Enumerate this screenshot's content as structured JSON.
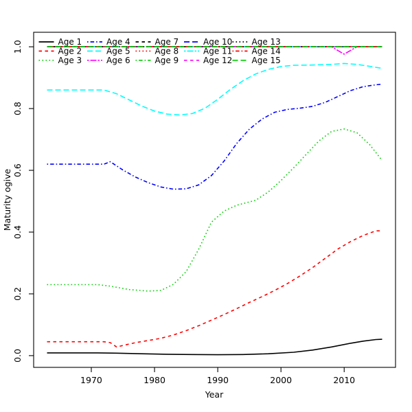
{
  "figure": {
    "background": "#ffffff",
    "plot_type": "r-base-line-plot"
  },
  "chart_data": {
    "type": "line",
    "title": "",
    "xlabel": "Year",
    "ylabel": "Maturity ogive",
    "xlim": [
      1960.88,
      2018.12
    ],
    "ylim": [
      -0.038,
      1.047
    ],
    "grid": false,
    "x_ticks": {
      "values": [
        1970,
        1980,
        1990,
        2000,
        2010
      ],
      "labels": [
        "1970",
        "1980",
        "1990",
        "2000",
        "2010"
      ]
    },
    "y_ticks": {
      "values": [
        0.0,
        0.2,
        0.4,
        0.6,
        0.8,
        1.0
      ],
      "labels": [
        "0.0",
        "0.2",
        "0.4",
        "0.6",
        "0.8",
        "1.0"
      ]
    },
    "legend": {
      "position": "top-left",
      "columns": 5,
      "rows": 3,
      "order": "column-major"
    },
    "palette": {
      "black": "#000000",
      "red": "#FF0000",
      "green": "#00CD00",
      "blue": "#0000FF",
      "cyan": "#00FFFF",
      "magenta": "#FF00FF"
    },
    "series": [
      {
        "name": "Age 1",
        "color": "#000000",
        "linetype": "solid",
        "points": [
          [
            1963,
            0.009
          ],
          [
            1971,
            0.009
          ],
          [
            1974,
            0.008
          ],
          [
            1978,
            0.006
          ],
          [
            1982,
            0.0045
          ],
          [
            1986,
            0.0035
          ],
          [
            1990,
            0.003
          ],
          [
            1994,
            0.0035
          ],
          [
            1998,
            0.006
          ],
          [
            2002,
            0.011
          ],
          [
            2005,
            0.018
          ],
          [
            2008,
            0.028
          ],
          [
            2011,
            0.04
          ],
          [
            2013,
            0.047
          ],
          [
            2015,
            0.052
          ],
          [
            2016,
            0.053
          ]
        ]
      },
      {
        "name": "Age 2",
        "color": "#FF0000",
        "linetype": "dashed",
        "points": [
          [
            1963,
            0.045
          ],
          [
            1972,
            0.045
          ],
          [
            1973,
            0.042
          ],
          [
            1974,
            0.028
          ],
          [
            1975,
            0.033
          ],
          [
            1977,
            0.042
          ],
          [
            1979,
            0.049
          ],
          [
            1981,
            0.056
          ],
          [
            1983,
            0.067
          ],
          [
            1985,
            0.081
          ],
          [
            1987,
            0.097
          ],
          [
            1989,
            0.115
          ],
          [
            1991,
            0.133
          ],
          [
            1993,
            0.152
          ],
          [
            1995,
            0.172
          ],
          [
            1997,
            0.191
          ],
          [
            1999,
            0.211
          ],
          [
            2001,
            0.233
          ],
          [
            2003,
            0.258
          ],
          [
            2005,
            0.285
          ],
          [
            2007,
            0.315
          ],
          [
            2009,
            0.345
          ],
          [
            2011,
            0.369
          ],
          [
            2013,
            0.389
          ],
          [
            2015,
            0.404
          ],
          [
            2016,
            0.404
          ]
        ]
      },
      {
        "name": "Age 3",
        "color": "#00CD00",
        "linetype": "dotted",
        "points": [
          [
            1963,
            0.23
          ],
          [
            1971,
            0.23
          ],
          [
            1973,
            0.225
          ],
          [
            1976,
            0.214
          ],
          [
            1979,
            0.209
          ],
          [
            1981,
            0.211
          ],
          [
            1983,
            0.231
          ],
          [
            1985,
            0.272
          ],
          [
            1987,
            0.345
          ],
          [
            1989,
            0.432
          ],
          [
            1991,
            0.468
          ],
          [
            1993,
            0.487
          ],
          [
            1996,
            0.503
          ],
          [
            1998,
            0.53
          ],
          [
            2000,
            0.567
          ],
          [
            2002,
            0.608
          ],
          [
            2004,
            0.652
          ],
          [
            2006,
            0.695
          ],
          [
            2008,
            0.726
          ],
          [
            2010,
            0.734
          ],
          [
            2012,
            0.722
          ],
          [
            2014,
            0.684
          ],
          [
            2016,
            0.632
          ]
        ]
      },
      {
        "name": "Age 4",
        "color": "#0000FF",
        "linetype": "dotdash",
        "points": [
          [
            1963,
            0.62
          ],
          [
            1972,
            0.62
          ],
          [
            1973,
            0.628
          ],
          [
            1975,
            0.601
          ],
          [
            1977,
            0.578
          ],
          [
            1979,
            0.56
          ],
          [
            1981,
            0.546
          ],
          [
            1983,
            0.539
          ],
          [
            1985,
            0.54
          ],
          [
            1987,
            0.553
          ],
          [
            1989,
            0.583
          ],
          [
            1991,
            0.63
          ],
          [
            1993,
            0.687
          ],
          [
            1995,
            0.733
          ],
          [
            1997,
            0.766
          ],
          [
            1999,
            0.788
          ],
          [
            2001,
            0.797
          ],
          [
            2003,
            0.801
          ],
          [
            2005,
            0.807
          ],
          [
            2007,
            0.82
          ],
          [
            2009,
            0.839
          ],
          [
            2011,
            0.858
          ],
          [
            2013,
            0.871
          ],
          [
            2015,
            0.877
          ],
          [
            2016,
            0.879
          ]
        ]
      },
      {
        "name": "Age 5",
        "color": "#00FFFF",
        "linetype": "longdash",
        "points": [
          [
            1963,
            0.86
          ],
          [
            1972,
            0.86
          ],
          [
            1974,
            0.848
          ],
          [
            1976,
            0.828
          ],
          [
            1978,
            0.808
          ],
          [
            1980,
            0.792
          ],
          [
            1982,
            0.782
          ],
          [
            1984,
            0.779
          ],
          [
            1986,
            0.784
          ],
          [
            1988,
            0.801
          ],
          [
            1990,
            0.83
          ],
          [
            1992,
            0.862
          ],
          [
            1994,
            0.89
          ],
          [
            1996,
            0.912
          ],
          [
            1998,
            0.927
          ],
          [
            2000,
            0.936
          ],
          [
            2002,
            0.94
          ],
          [
            2005,
            0.941
          ],
          [
            2008,
            0.943
          ],
          [
            2010,
            0.946
          ],
          [
            2012,
            0.943
          ],
          [
            2014,
            0.937
          ],
          [
            2016,
            0.93
          ]
        ]
      },
      {
        "name": "Age 6",
        "color": "#FF00FF",
        "linetype": "twodash",
        "points": [
          [
            1963,
            1
          ],
          [
            2008,
            1
          ],
          [
            2010,
            0.976
          ],
          [
            2012,
            1
          ],
          [
            2016,
            1
          ]
        ]
      },
      {
        "name": "Age 7",
        "color": "#000000",
        "linetype": "dashed",
        "points": [
          [
            1963,
            1
          ],
          [
            2016,
            1
          ]
        ]
      },
      {
        "name": "Age 8",
        "color": "#FF0000",
        "linetype": "dotted",
        "points": [
          [
            1963,
            1
          ],
          [
            2016,
            1
          ]
        ]
      },
      {
        "name": "Age 9",
        "color": "#00CD00",
        "linetype": "dotdash",
        "points": [
          [
            1963,
            1
          ],
          [
            2016,
            1
          ]
        ]
      },
      {
        "name": "Age 10",
        "color": "#0000FF",
        "linetype": "longdash",
        "points": [
          [
            1963,
            1
          ],
          [
            2016,
            1
          ]
        ]
      },
      {
        "name": "Age 11",
        "color": "#00FFFF",
        "linetype": "twodash",
        "points": [
          [
            1963,
            1
          ],
          [
            2016,
            1
          ]
        ]
      },
      {
        "name": "Age 12",
        "color": "#FF00FF",
        "linetype": "dashed",
        "points": [
          [
            1963,
            1
          ],
          [
            2016,
            1
          ]
        ]
      },
      {
        "name": "Age 13",
        "color": "#000000",
        "linetype": "dotted",
        "points": [
          [
            1963,
            1
          ],
          [
            2016,
            1
          ]
        ]
      },
      {
        "name": "Age 14",
        "color": "#FF0000",
        "linetype": "dotdash",
        "points": [
          [
            1963,
            1
          ],
          [
            2016,
            1
          ]
        ]
      },
      {
        "name": "Age 15",
        "color": "#00CD00",
        "linetype": "longdash",
        "points": [
          [
            1963,
            1
          ],
          [
            2016,
            1
          ]
        ]
      }
    ]
  }
}
